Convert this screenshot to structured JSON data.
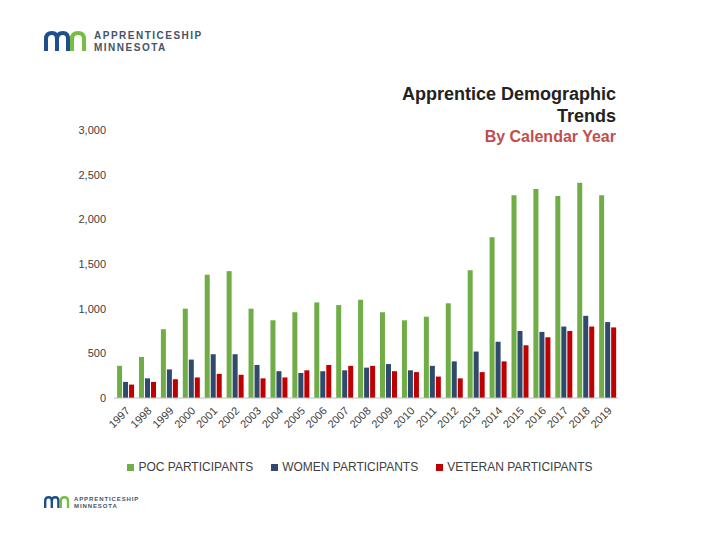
{
  "logo_text": [
    "APPRENTICESHIP",
    "MINNESOTA"
  ],
  "chart_data": {
    "type": "bar",
    "title": "Apprentice Demographic Trends",
    "subtitle": "By Calendar Year",
    "categories": [
      "1997",
      "1998",
      "1999",
      "2000",
      "2001",
      "2002",
      "2003",
      "2004",
      "2005",
      "2006",
      "2007",
      "2008",
      "2009",
      "2010",
      "2011",
      "2012",
      "2013",
      "2014",
      "2015",
      "2016",
      "2017",
      "2018",
      "2019"
    ],
    "series": [
      {
        "name": "POC PARTICIPANTS",
        "color": "#70ad47",
        "values": [
          360,
          460,
          770,
          1000,
          1380,
          1420,
          1000,
          870,
          960,
          1070,
          1040,
          1100,
          960,
          870,
          910,
          1060,
          1430,
          1800,
          2270,
          2340,
          2260,
          2410,
          2270
        ]
      },
      {
        "name": "WOMEN PARTICIPANTS",
        "color": "#2f4a6d",
        "values": [
          180,
          220,
          320,
          430,
          490,
          490,
          370,
          300,
          280,
          300,
          310,
          340,
          380,
          310,
          360,
          410,
          520,
          630,
          750,
          740,
          800,
          920,
          850
        ]
      },
      {
        "name": "VETERAN PARTICIPANTS",
        "color": "#c00000",
        "values": [
          150,
          180,
          210,
          230,
          270,
          260,
          220,
          230,
          310,
          370,
          360,
          360,
          300,
          290,
          240,
          220,
          290,
          410,
          590,
          680,
          750,
          800,
          790
        ]
      }
    ],
    "ylim": [
      0,
      3000
    ],
    "yticks": [
      0,
      500,
      {
        "value": 1000,
        "label": "1,000"
      },
      {
        "value": 1500,
        "label": "1,500"
      },
      {
        "value": 2000,
        "label": "2,000"
      },
      {
        "value": 2500,
        "label": "2,500"
      },
      {
        "value": 3000,
        "label": "3,000"
      }
    ],
    "grid": false,
    "legend": "bottom"
  }
}
